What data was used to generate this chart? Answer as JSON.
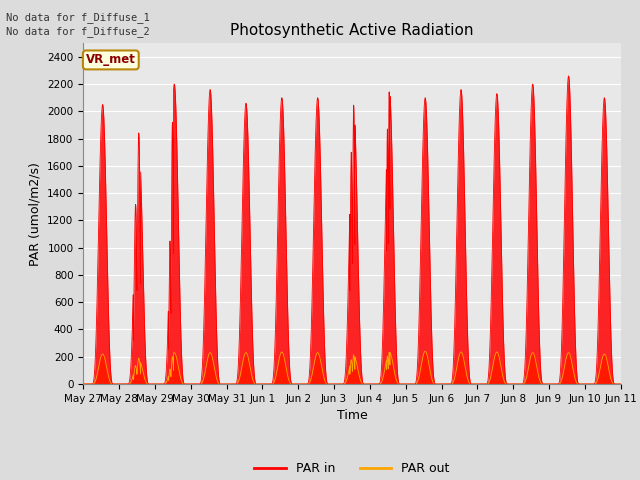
{
  "title": "Photosynthetic Active Radiation",
  "ylabel": "PAR (umol/m2/s)",
  "xlabel": "Time",
  "text_no_data": [
    "No data for f_Diffuse_1",
    "No data for f_Diffuse_2"
  ],
  "vr_met_label": "VR_met",
  "legend_labels": [
    "PAR in",
    "PAR out"
  ],
  "color_par_in": "#FF0000",
  "color_par_out": "#FFA500",
  "ylim": [
    0,
    2500
  ],
  "yticks": [
    0,
    200,
    400,
    600,
    800,
    1000,
    1200,
    1400,
    1600,
    1800,
    2000,
    2200,
    2400
  ],
  "background_color": "#DCDCDC",
  "plot_bg_color": "#E8E8E8",
  "title_fontsize": 11,
  "axis_fontsize": 9,
  "tick_fontsize": 7.5,
  "peak_in": [
    2050,
    1850,
    2200,
    2160,
    2060,
    2100,
    2100,
    2050,
    2150,
    2100,
    2160,
    2130,
    2200,
    2260,
    2100
  ],
  "peak_out": [
    220,
    190,
    230,
    230,
    230,
    235,
    230,
    215,
    235,
    240,
    235,
    235,
    230,
    230,
    220
  ]
}
